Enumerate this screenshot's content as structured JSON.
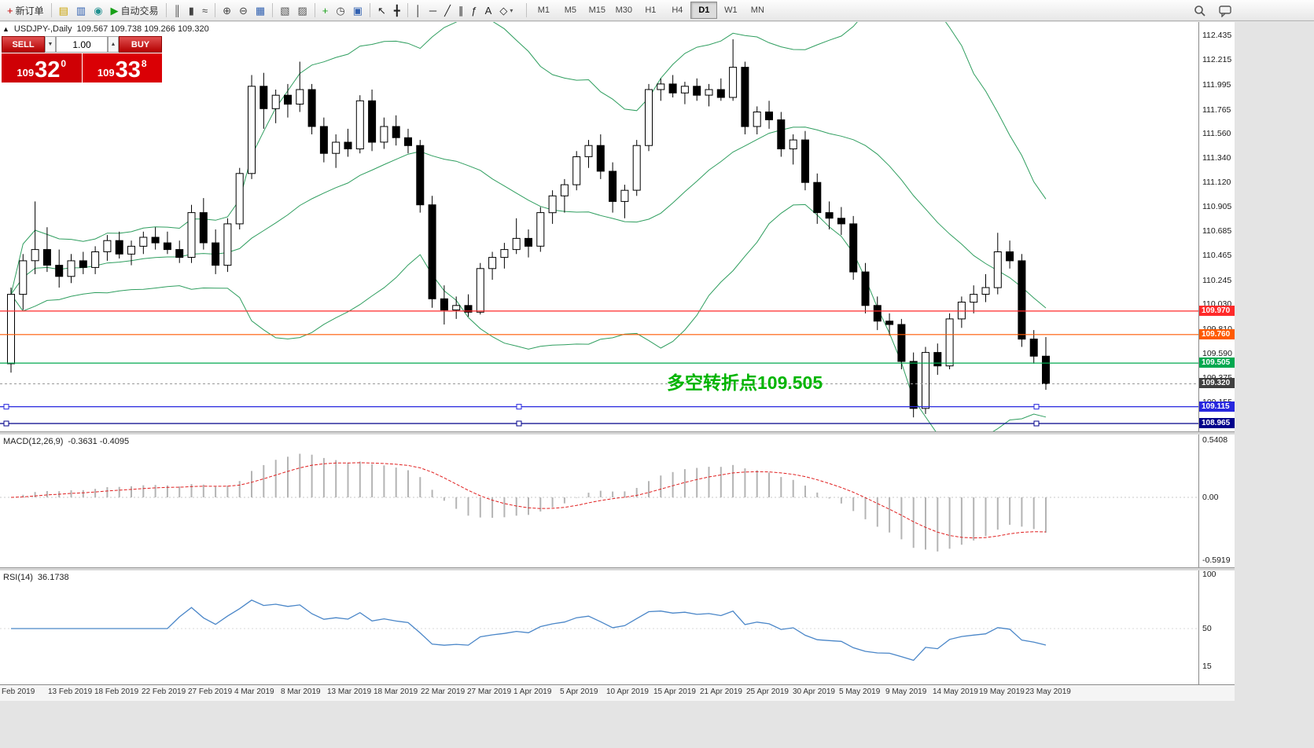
{
  "toolbar": {
    "groups": [
      {
        "items": [
          {
            "name": "new-order-button",
            "glyph": "+",
            "glyph_color": "#c00000",
            "label": "新订单"
          }
        ]
      },
      {
        "items": [
          {
            "name": "charts-icon",
            "glyph": "▤",
            "glyph_color": "#c8a000"
          },
          {
            "name": "terminal-icon",
            "glyph": "▥",
            "glyph_color": "#3060b0"
          },
          {
            "name": "signals-icon",
            "glyph": "◉",
            "glyph_color": "#209090"
          },
          {
            "name": "autotrading-button",
            "glyph": "▶",
            "glyph_color": "#18a018",
            "label": "自动交易"
          }
        ]
      },
      {
        "items": [
          {
            "name": "bar-chart-icon",
            "glyph": "║",
            "glyph_color": "#444444"
          },
          {
            "name": "candlestick-chart-icon",
            "glyph": "▮",
            "glyph_color": "#444444"
          },
          {
            "name": "line-chart-icon",
            "glyph": "≈",
            "glyph_color": "#444444"
          }
        ]
      },
      {
        "items": [
          {
            "name": "zoom-in-icon",
            "glyph": "⊕",
            "glyph_color": "#444444"
          },
          {
            "name": "zoom-out-icon",
            "glyph": "⊖",
            "glyph_color": "#444444"
          },
          {
            "name": "tile-windows-icon",
            "glyph": "▦",
            "glyph_color": "#3060b0"
          }
        ]
      },
      {
        "items": [
          {
            "name": "indicators-list-icon",
            "glyph": "▧",
            "glyph_color": "#555555"
          },
          {
            "name": "objects-list-icon",
            "glyph": "▨",
            "glyph_color": "#555555"
          }
        ]
      },
      {
        "items": [
          {
            "name": "add-indicator-icon",
            "glyph": "+",
            "glyph_color": "#18a018"
          },
          {
            "name": "periods-icon",
            "glyph": "◷",
            "glyph_color": "#444444"
          },
          {
            "name": "template-icon",
            "glyph": "▣",
            "glyph_color": "#3060b0"
          }
        ]
      },
      {
        "items": [
          {
            "name": "cursor-icon",
            "glyph": "↖",
            "glyph_color": "#222222"
          },
          {
            "name": "crosshair-icon",
            "glyph": "╋",
            "glyph_color": "#222222"
          }
        ]
      },
      {
        "items": [
          {
            "name": "vertical-line-icon",
            "glyph": "│",
            "glyph_color": "#222222"
          },
          {
            "name": "horizontal-line-icon",
            "glyph": "─",
            "glyph_color": "#222222"
          },
          {
            "name": "trendline-icon",
            "glyph": "╱",
            "glyph_color": "#222222"
          },
          {
            "name": "channel-icon",
            "glyph": "∥",
            "glyph_color": "#222222"
          },
          {
            "name": "fibonacci-icon",
            "glyph": "ƒ",
            "glyph_color": "#222222"
          },
          {
            "name": "text-icon",
            "glyph": "A",
            "glyph_color": "#222222"
          },
          {
            "name": "arrows-icon",
            "glyph": "◇",
            "glyph_color": "#222222",
            "dropdown": true
          }
        ]
      }
    ],
    "dropdown_glyph": "▾",
    "timeframes": {
      "items": [
        "M1",
        "M5",
        "M15",
        "M30",
        "H1",
        "H4",
        "D1",
        "W1",
        "MN"
      ],
      "active": "D1"
    }
  },
  "chart_header": {
    "collapse_glyph": "▲",
    "symbol": "USDJPY-,Daily",
    "ohlc": "109.567 109.738 109.266 109.320"
  },
  "one_click": {
    "sell_label": "SELL",
    "buy_label": "BUY",
    "volume": "1.00",
    "spin_up": "▲",
    "spin_down": "▼",
    "sell_price": {
      "base": "109",
      "pips": "32",
      "pipette": "0"
    },
    "buy_price": {
      "base": "109",
      "pips": "33",
      "pipette": "8"
    }
  },
  "annotation": {
    "text": "多空转折点109.505",
    "color": "#00b400"
  },
  "chart_data": {
    "type": "candlestick",
    "symbol": "USDJPY",
    "period": "Daily",
    "ohlc_readout": {
      "open": 109.567,
      "high": 109.738,
      "low": 109.266,
      "close": 109.32
    },
    "price_axis": {
      "labels": [
        "112.435",
        "112.215",
        "111.995",
        "111.765",
        "111.560",
        "111.340",
        "111.120",
        "110.905",
        "110.685",
        "110.465",
        "110.245",
        "110.030",
        "109.810",
        "109.590",
        "109.375",
        "109.155"
      ]
    },
    "candles": [
      [
        109.5,
        110.18,
        109.42,
        110.12
      ],
      [
        110.12,
        110.48,
        109.98,
        110.42
      ],
      [
        110.42,
        110.95,
        110.3,
        110.52
      ],
      [
        110.52,
        110.72,
        110.32,
        110.38
      ],
      [
        110.38,
        110.52,
        110.18,
        110.28
      ],
      [
        110.28,
        110.48,
        110.22,
        110.42
      ],
      [
        110.42,
        110.5,
        110.3,
        110.36
      ],
      [
        110.36,
        110.55,
        110.3,
        110.5
      ],
      [
        110.5,
        110.65,
        110.42,
        110.6
      ],
      [
        110.6,
        110.68,
        110.44,
        110.48
      ],
      [
        110.48,
        110.6,
        110.38,
        110.55
      ],
      [
        110.55,
        110.68,
        110.48,
        110.63
      ],
      [
        110.63,
        110.72,
        110.52,
        110.58
      ],
      [
        110.58,
        110.68,
        110.48,
        110.52
      ],
      [
        110.52,
        110.6,
        110.4,
        110.45
      ],
      [
        110.45,
        110.92,
        110.4,
        110.85
      ],
      [
        110.85,
        110.98,
        110.52,
        110.58
      ],
      [
        110.58,
        110.7,
        110.3,
        110.38
      ],
      [
        110.38,
        110.8,
        110.32,
        110.75
      ],
      [
        110.75,
        111.25,
        110.7,
        111.2
      ],
      [
        111.2,
        112.08,
        111.15,
        111.98
      ],
      [
        111.98,
        112.1,
        111.6,
        111.78
      ],
      [
        111.78,
        111.95,
        111.65,
        111.9
      ],
      [
        111.9,
        112.0,
        111.7,
        111.82
      ],
      [
        111.82,
        112.2,
        111.75,
        111.95
      ],
      [
        111.95,
        112.0,
        111.55,
        111.62
      ],
      [
        111.62,
        111.7,
        111.3,
        111.38
      ],
      [
        111.38,
        111.55,
        111.25,
        111.48
      ],
      [
        111.48,
        111.6,
        111.35,
        111.42
      ],
      [
        111.42,
        111.9,
        111.38,
        111.85
      ],
      [
        111.85,
        111.95,
        111.4,
        111.48
      ],
      [
        111.48,
        111.7,
        111.42,
        111.62
      ],
      [
        111.62,
        111.72,
        111.45,
        111.52
      ],
      [
        111.52,
        111.6,
        111.38,
        111.45
      ],
      [
        111.45,
        111.5,
        110.85,
        110.92
      ],
      [
        110.92,
        111.0,
        110.0,
        110.08
      ],
      [
        110.08,
        110.2,
        109.85,
        109.98
      ],
      [
        109.98,
        110.1,
        109.9,
        110.02
      ],
      [
        110.02,
        110.12,
        109.92,
        109.96
      ],
      [
        109.96,
        110.4,
        109.94,
        110.35
      ],
      [
        110.35,
        110.5,
        110.25,
        110.45
      ],
      [
        110.45,
        110.58,
        110.35,
        110.52
      ],
      [
        110.52,
        110.8,
        110.48,
        110.62
      ],
      [
        110.62,
        110.7,
        110.45,
        110.55
      ],
      [
        110.55,
        110.9,
        110.5,
        110.85
      ],
      [
        110.85,
        111.05,
        110.75,
        111.0
      ],
      [
        111.0,
        111.15,
        110.85,
        111.1
      ],
      [
        111.1,
        111.4,
        111.05,
        111.35
      ],
      [
        111.35,
        111.5,
        111.25,
        111.45
      ],
      [
        111.45,
        111.55,
        111.15,
        111.22
      ],
      [
        111.22,
        111.3,
        110.85,
        110.95
      ],
      [
        110.95,
        111.1,
        110.8,
        111.05
      ],
      [
        111.05,
        111.5,
        111.0,
        111.45
      ],
      [
        111.45,
        112.0,
        111.4,
        111.95
      ],
      [
        111.95,
        112.05,
        111.85,
        112.0
      ],
      [
        112.0,
        112.08,
        111.88,
        111.92
      ],
      [
        111.92,
        112.02,
        111.82,
        111.98
      ],
      [
        111.98,
        112.05,
        111.85,
        111.9
      ],
      [
        111.9,
        112.0,
        111.8,
        111.95
      ],
      [
        111.95,
        112.05,
        111.85,
        111.88
      ],
      [
        111.88,
        112.4,
        111.85,
        112.15
      ],
      [
        112.15,
        112.2,
        111.55,
        111.62
      ],
      [
        111.62,
        111.8,
        111.55,
        111.75
      ],
      [
        111.75,
        111.85,
        111.6,
        111.68
      ],
      [
        111.68,
        111.75,
        111.35,
        111.42
      ],
      [
        111.42,
        111.55,
        111.28,
        111.5
      ],
      [
        111.5,
        111.58,
        111.05,
        111.12
      ],
      [
        111.12,
        111.2,
        110.75,
        110.85
      ],
      [
        110.85,
        110.95,
        110.7,
        110.8
      ],
      [
        110.8,
        110.9,
        110.65,
        110.75
      ],
      [
        110.75,
        110.82,
        110.25,
        110.32
      ],
      [
        110.32,
        110.4,
        109.95,
        110.02
      ],
      [
        110.02,
        110.1,
        109.8,
        109.88
      ],
      [
        109.88,
        109.95,
        109.75,
        109.85
      ],
      [
        109.85,
        109.9,
        109.45,
        109.52
      ],
      [
        109.52,
        109.6,
        109.02,
        109.1
      ],
      [
        109.1,
        109.65,
        109.05,
        109.6
      ],
      [
        109.6,
        109.68,
        109.4,
        109.48
      ],
      [
        109.48,
        109.95,
        109.45,
        109.9
      ],
      [
        109.9,
        110.1,
        109.82,
        110.05
      ],
      [
        110.05,
        110.2,
        109.95,
        110.12
      ],
      [
        110.12,
        110.3,
        110.05,
        110.18
      ],
      [
        110.18,
        110.67,
        110.12,
        110.5
      ],
      [
        110.5,
        110.6,
        110.35,
        110.42
      ],
      [
        110.42,
        110.48,
        109.65,
        109.72
      ],
      [
        109.72,
        109.8,
        109.5,
        109.567
      ],
      [
        109.567,
        109.738,
        109.266,
        109.32
      ]
    ],
    "bollinger": {
      "period": 20,
      "deviation": 2,
      "color": "#2f9e5f"
    },
    "hlines": [
      {
        "price": 109.97,
        "color": "#ff2a2a",
        "badge": "109.970",
        "handles": false
      },
      {
        "price": 109.76,
        "color": "#ff5a00",
        "badge": "109.760",
        "handles": false
      },
      {
        "price": 109.505,
        "color": "#00a84f",
        "badge": "109.505",
        "handles": false
      },
      {
        "price": 109.115,
        "color": "#2727de",
        "badge": "109.115",
        "handles": true
      },
      {
        "price": 108.965,
        "color": "#00008b",
        "badge": "108.965",
        "handles": true
      }
    ],
    "current_price": {
      "value": 109.32,
      "badge": "109.320",
      "badge_color": "#3f3f3f"
    },
    "indicators": {
      "macd": {
        "label": "MACD(12,26,9)",
        "values_text": "-0.3631 -0.4095",
        "fast": 12,
        "slow": 26,
        "signal": 9,
        "axis_labels": [
          "0.5408",
          "0.00",
          "-0.5919"
        ],
        "axis_values": [
          0.5408,
          0,
          -0.5919
        ],
        "histogram_color": "#b4b4b4",
        "signal_color": "#e02020"
      },
      "rsi": {
        "label": "RSI(14)",
        "period": 14,
        "value_text": "36.1738",
        "value": 36.1738,
        "axis_labels": [
          "100",
          "50",
          "15"
        ],
        "axis_values": [
          100,
          50,
          15
        ],
        "line_color": "#4a86c8"
      }
    },
    "dates": [
      "Feb 2019",
      "13 Feb 2019",
      "18 Feb 2019",
      "22 Feb 2019",
      "27 Feb 2019",
      "4 Mar 2019",
      "8 Mar 2019",
      "13 Mar 2019",
      "18 Mar 2019",
      "22 Mar 2019",
      "27 Mar 2019",
      "1 Apr 2019",
      "5 Apr 2019",
      "10 Apr 2019",
      "15 Apr 2019",
      "21 Apr 2019",
      "25 Apr 2019",
      "30 Apr 2019",
      "5 May 2019",
      "9 May 2019",
      "14 May 2019",
      "19 May 2019",
      "23 May 2019"
    ]
  }
}
